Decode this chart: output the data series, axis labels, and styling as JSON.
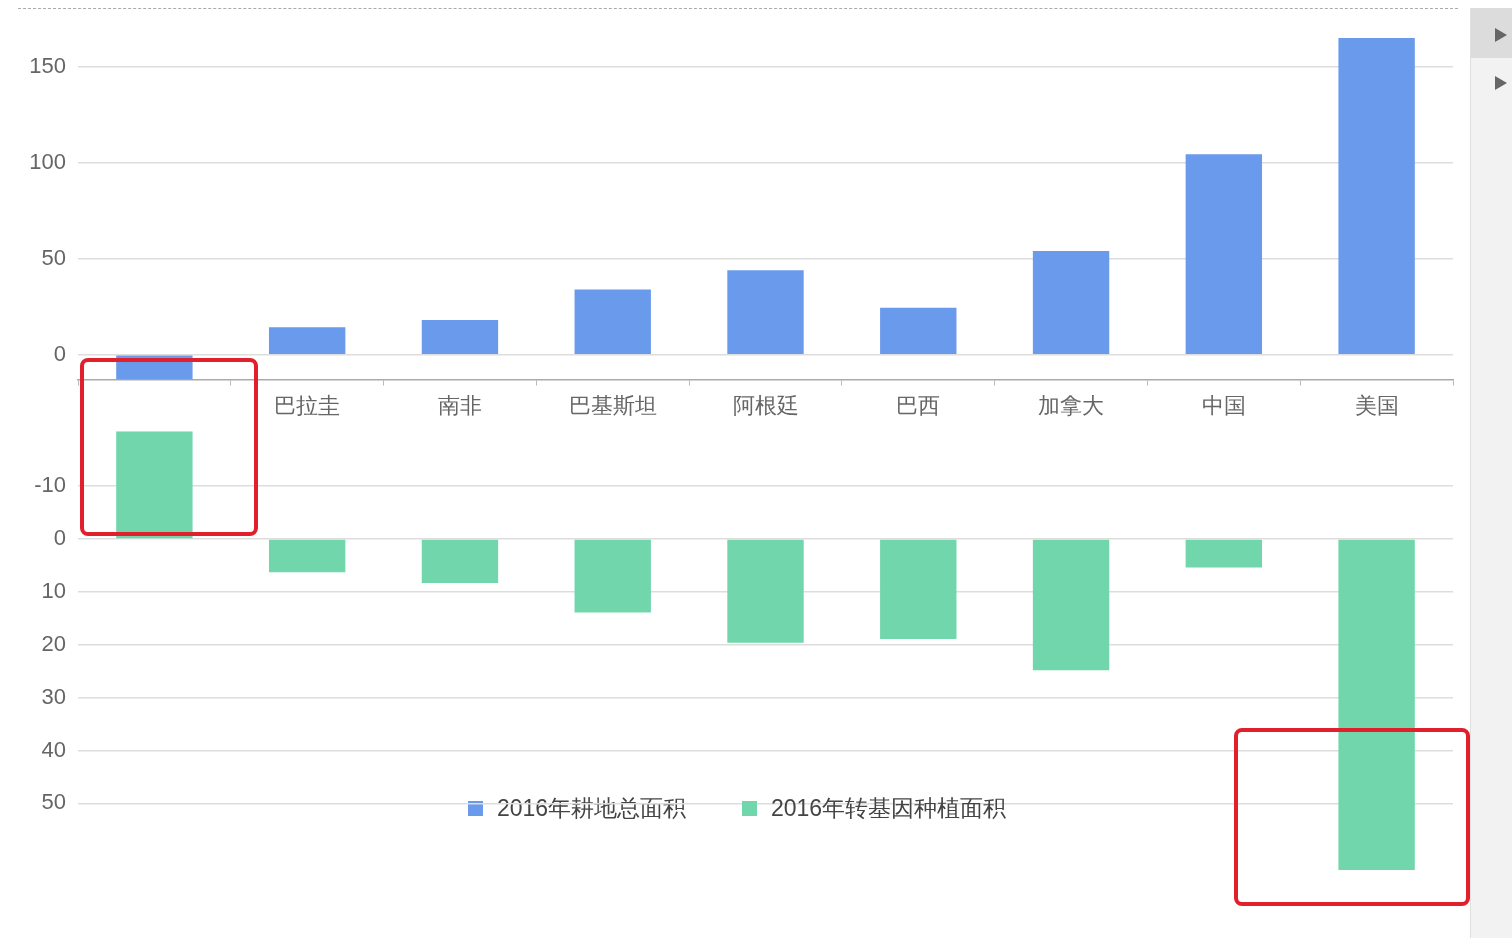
{
  "chart_data": [
    {
      "type": "bar",
      "categories": [
        null,
        "巴拉圭",
        "南非",
        "巴基斯坦",
        "阿根廷",
        "巴西",
        "加拿大",
        "中国",
        "美国"
      ],
      "series": [
        {
          "name": "2016年耕地总面积",
          "color": "#6a9aec",
          "values": [
            -13,
            14.3,
            18,
            34,
            44,
            24.4,
            54,
            104.4,
            165
          ]
        }
      ],
      "ylim": [
        -13,
        165
      ],
      "yticks": [
        0,
        50,
        100,
        150
      ],
      "grid": "y",
      "legend": "bottom"
    },
    {
      "type": "bar",
      "categories": [
        null,
        null,
        null,
        null,
        null,
        null,
        null,
        null,
        null
      ],
      "series": [
        {
          "name": "2016年转基因种植面积",
          "color": "#72d6ac",
          "values": [
            -20.4,
            6.3,
            8.3,
            13.9,
            19.6,
            18.9,
            24.8,
            5.4,
            62.6
          ]
        }
      ],
      "ylim": [
        62.6,
        -20.4
      ],
      "yticks": [
        -10,
        0,
        10,
        20,
        30,
        40,
        50
      ],
      "grid": "y",
      "legend": "bottom",
      "tick_labels": "y"
    }
  ]
}
